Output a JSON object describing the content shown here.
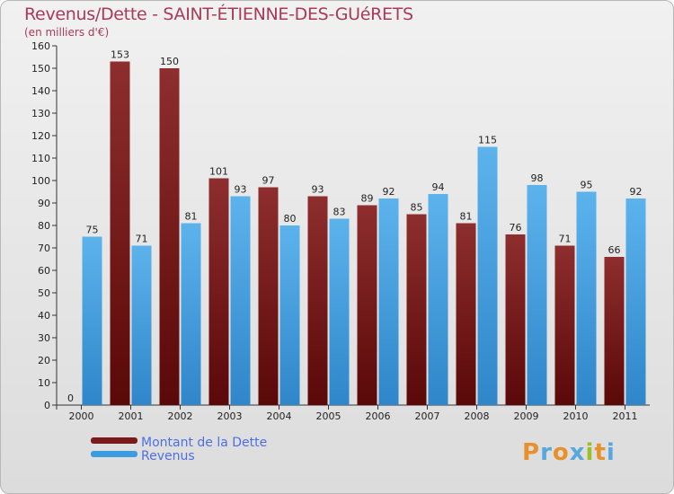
{
  "title": "Revenus/Dette - SAINT-ÉTIENNE-DES-GUéRETS",
  "unit": "(en milliers d'€)",
  "chart_data": {
    "type": "bar",
    "categories": [
      "2000",
      "2001",
      "2002",
      "2003",
      "2004",
      "2005",
      "2006",
      "2007",
      "2008",
      "2009",
      "2010",
      "2011"
    ],
    "series": [
      {
        "name": "Montant de la Dette",
        "color": "#7a1a1a",
        "values": [
          0,
          153,
          150,
          101,
          97,
          93,
          89,
          85,
          81,
          76,
          71,
          66
        ]
      },
      {
        "name": "Revenus",
        "color": "#3b9de0",
        "values": [
          75,
          71,
          81,
          93,
          80,
          83,
          92,
          94,
          115,
          98,
          95,
          92
        ]
      }
    ],
    "ylim": [
      0,
      160
    ],
    "yticks": [
      0,
      10,
      20,
      30,
      40,
      50,
      60,
      70,
      80,
      90,
      100,
      110,
      120,
      130,
      140,
      150,
      160
    ],
    "grid": false,
    "legend_position": "bottom-left"
  },
  "logo": {
    "letters": [
      {
        "ch": "P",
        "color": "#e8912c"
      },
      {
        "ch": "r",
        "color": "#58a7dd"
      },
      {
        "ch": "o",
        "color": "#e8912c"
      },
      {
        "ch": "x",
        "color": "#58a7dd"
      },
      {
        "ch": "i",
        "color": "#9cbf2d"
      },
      {
        "ch": "t",
        "color": "#e8912c"
      },
      {
        "ch": "i",
        "color": "#58a7dd"
      }
    ]
  }
}
